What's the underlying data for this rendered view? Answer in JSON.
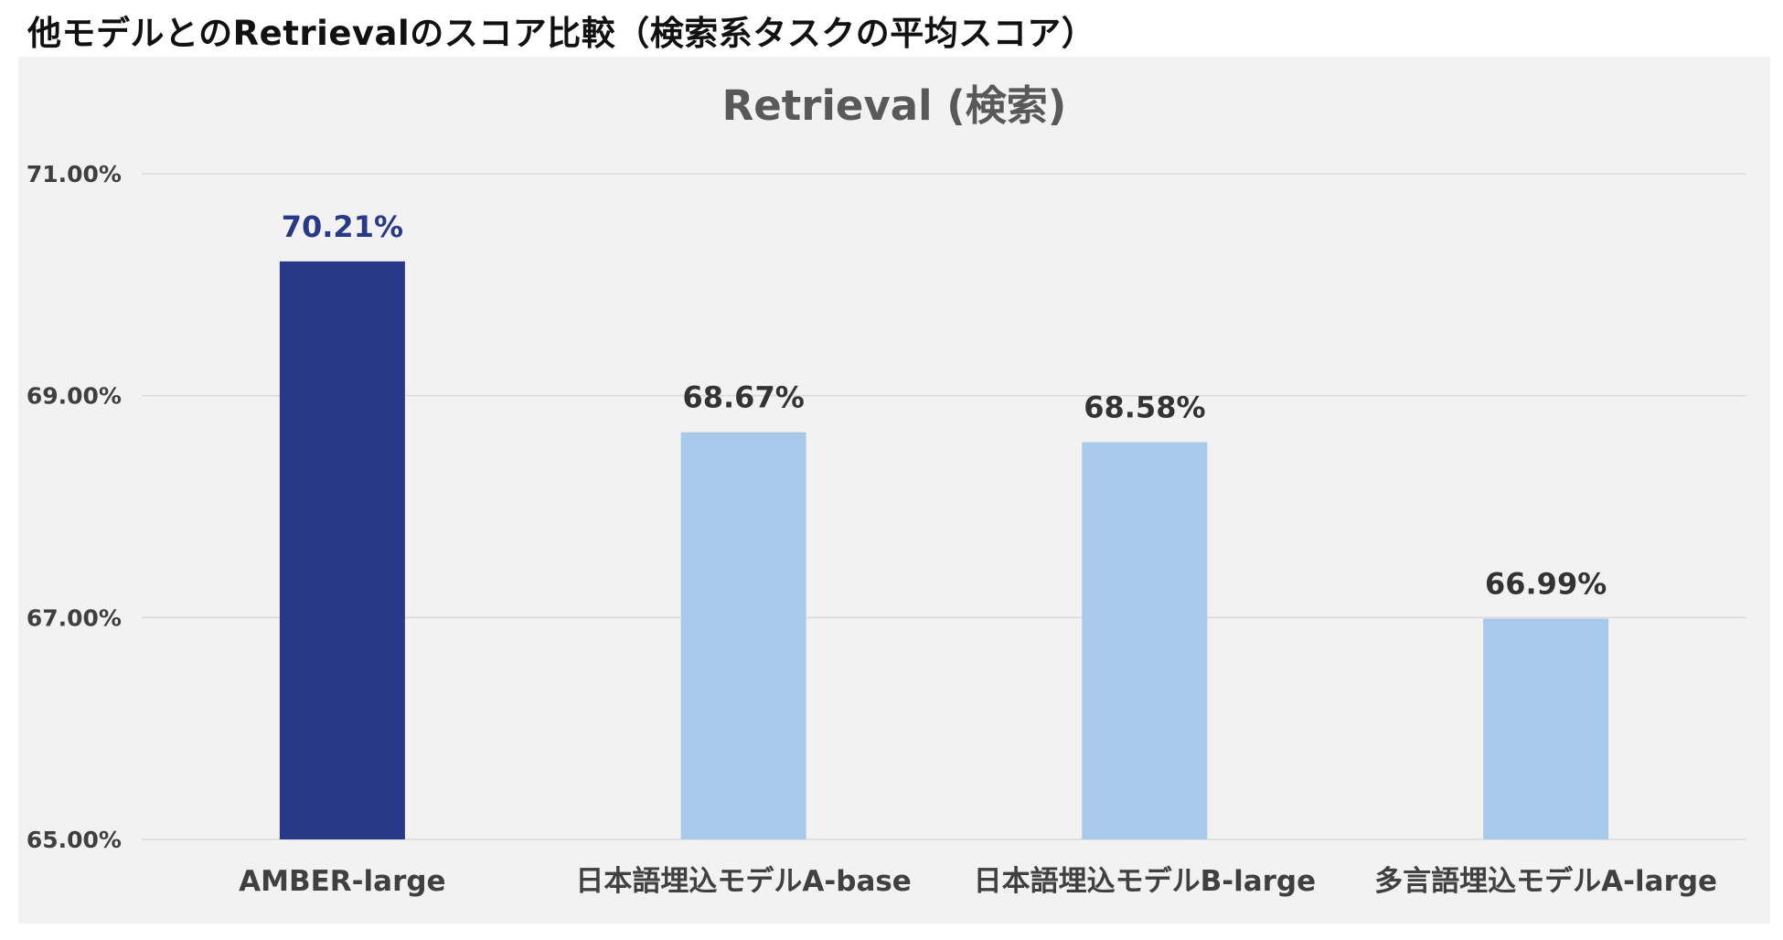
{
  "page": {
    "heading": "他モデルとのRetrievalのスコア比較（検索系タスクの平均スコア）"
  },
  "colors": {
    "highlight_bar": "#283a87",
    "other_bar": "#a7c9ea",
    "highlight_label": "#283a87",
    "other_label": "#333333",
    "gridline": "#d9d9d9",
    "panel_background": "#f2f2f2"
  },
  "chart_data": {
    "type": "bar",
    "title": "Retrieval (検索)",
    "xlabel": "",
    "ylabel": "",
    "ylim": [
      65,
      71
    ],
    "y_ticks": [
      65,
      67,
      69,
      71
    ],
    "y_tick_labels": [
      "65.00%",
      "67.00%",
      "69.00%",
      "71.00%"
    ],
    "categories": [
      "AMBER-large",
      "日本語埋込モデルA-base",
      "日本語埋込モデルB-large",
      "多言語埋込モデルA-large"
    ],
    "values": [
      70.21,
      68.67,
      68.58,
      66.99
    ],
    "data_labels": [
      "70.21%",
      "68.67%",
      "68.58%",
      "66.99%"
    ],
    "highlighted_category": "AMBER-large",
    "grid": true,
    "legend": "none"
  }
}
